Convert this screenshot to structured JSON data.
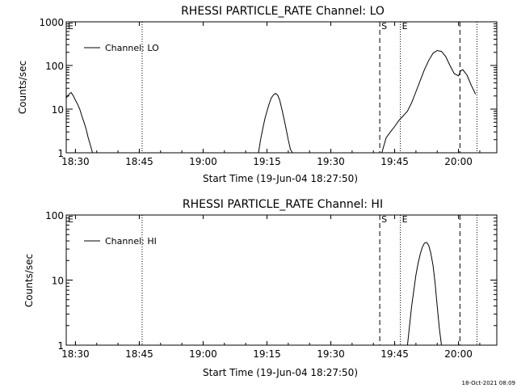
{
  "footer": {
    "timestamp": "18-Oct-2021 08:09"
  },
  "chart_data": [
    {
      "type": "line",
      "title": "RHESSI PARTICLE_RATE Channel: LO",
      "xlabel": "Start Time (19-Jun-04 18:27:50)",
      "ylabel": "Counts/sec",
      "yscale": "log",
      "ylim": [
        1,
        1000
      ],
      "xlim": [
        "18:27:50",
        "20:09:00"
      ],
      "grid": false,
      "legend": "top-left",
      "x_ticks": [
        "18:30",
        "18:45",
        "19:00",
        "19:15",
        "19:30",
        "19:45",
        "20:00"
      ],
      "y_ticks": [
        "1",
        "10",
        "100",
        "1000"
      ],
      "markers": [
        {
          "time": "18:27:50",
          "label": "E",
          "style": "none"
        },
        {
          "time": "18:45:40",
          "label": "",
          "style": "dotted"
        },
        {
          "time": "19:41:30",
          "label": "S",
          "style": "dashed"
        },
        {
          "time": "19:46:20",
          "label": "E",
          "style": "dotted"
        },
        {
          "time": "20:00:20",
          "label": "",
          "style": "dashed"
        },
        {
          "time": "20:04:20",
          "label": "",
          "style": "dotted"
        }
      ],
      "series": [
        {
          "name": "Channel: LO",
          "segments": [
            [
              [
                "18:27:50",
                18
              ],
              [
                "18:28:30",
                22
              ],
              [
                "18:29:00",
                24
              ],
              [
                "18:29:30",
                20
              ],
              [
                "18:30:00",
                16
              ],
              [
                "18:30:30",
                13
              ],
              [
                "18:31:00",
                10
              ],
              [
                "18:31:30",
                7
              ],
              [
                "18:32:00",
                5
              ],
              [
                "18:32:30",
                3.5
              ],
              [
                "18:33:00",
                2.2
              ],
              [
                "18:33:30",
                1.5
              ],
              [
                "18:34:00",
                1
              ]
            ],
            [
              [
                "19:13:00",
                1
              ],
              [
                "19:13:30",
                2
              ],
              [
                "19:14:00",
                3.5
              ],
              [
                "19:14:30",
                6
              ],
              [
                "19:15:00",
                9
              ],
              [
                "19:15:30",
                13
              ],
              [
                "19:16:00",
                18
              ],
              [
                "19:16:30",
                21
              ],
              [
                "19:17:00",
                23
              ],
              [
                "19:17:30",
                21
              ],
              [
                "19:18:00",
                16
              ],
              [
                "19:18:30",
                10
              ],
              [
                "19:19:00",
                6
              ],
              [
                "19:19:30",
                3.5
              ],
              [
                "19:20:00",
                2
              ],
              [
                "19:20:30",
                1.2
              ],
              [
                "19:21:00",
                1
              ]
            ],
            [
              [
                "19:42:00",
                1
              ],
              [
                "19:42:30",
                1.5
              ],
              [
                "19:43:00",
                2.2
              ],
              [
                "19:44:00",
                3
              ],
              [
                "19:45:00",
                4
              ],
              [
                "19:46:00",
                5.5
              ],
              [
                "19:47:00",
                7
              ],
              [
                "19:48:00",
                9
              ],
              [
                "19:49:00",
                14
              ],
              [
                "19:50:00",
                25
              ],
              [
                "19:51:00",
                45
              ],
              [
                "19:52:00",
                80
              ],
              [
                "19:53:00",
                130
              ],
              [
                "19:54:00",
                190
              ],
              [
                "19:55:00",
                220
              ],
              [
                "19:56:00",
                210
              ],
              [
                "19:57:00",
                160
              ],
              [
                "19:58:00",
                100
              ],
              [
                "19:59:00",
                65
              ],
              [
                "20:00:00",
                58
              ],
              [
                "20:00:30",
                75
              ],
              [
                "20:01:00",
                80
              ],
              [
                "20:02:00",
                60
              ],
              [
                "20:03:00",
                35
              ],
              [
                "20:04:00",
                22
              ]
            ]
          ]
        }
      ]
    },
    {
      "type": "line",
      "title": "RHESSI PARTICLE_RATE Channel: HI",
      "xlabel": "Start Time (19-Jun-04 18:27:50)",
      "ylabel": "Counts/sec",
      "yscale": "log",
      "ylim": [
        1,
        100
      ],
      "xlim": [
        "18:27:50",
        "20:09:00"
      ],
      "grid": false,
      "legend": "top-left",
      "x_ticks": [
        "18:30",
        "18:45",
        "19:00",
        "19:15",
        "19:30",
        "19:45",
        "20:00"
      ],
      "y_ticks": [
        "1",
        "10",
        "100"
      ],
      "markers": [
        {
          "time": "18:27:50",
          "label": "E",
          "style": "none"
        },
        {
          "time": "18:45:40",
          "label": "",
          "style": "dotted"
        },
        {
          "time": "19:41:30",
          "label": "S",
          "style": "dashed"
        },
        {
          "time": "19:46:20",
          "label": "E",
          "style": "dotted"
        },
        {
          "time": "20:00:20",
          "label": "",
          "style": "dashed"
        },
        {
          "time": "20:04:20",
          "label": "",
          "style": "dotted"
        }
      ],
      "series": [
        {
          "name": "Channel: HI",
          "segments": [
            [
              [
                "19:48:00",
                1
              ],
              [
                "19:48:30",
                2
              ],
              [
                "19:49:00",
                4
              ],
              [
                "19:49:30",
                7
              ],
              [
                "19:50:00",
                12
              ],
              [
                "19:50:30",
                18
              ],
              [
                "19:51:00",
                25
              ],
              [
                "19:51:30",
                32
              ],
              [
                "19:52:00",
                37
              ],
              [
                "19:52:30",
                38
              ],
              [
                "19:53:00",
                34
              ],
              [
                "19:53:30",
                26
              ],
              [
                "19:54:00",
                17
              ],
              [
                "19:54:30",
                9
              ],
              [
                "19:55:00",
                4
              ],
              [
                "19:55:30",
                1.8
              ],
              [
                "19:56:00",
                1
              ]
            ]
          ]
        }
      ]
    }
  ]
}
